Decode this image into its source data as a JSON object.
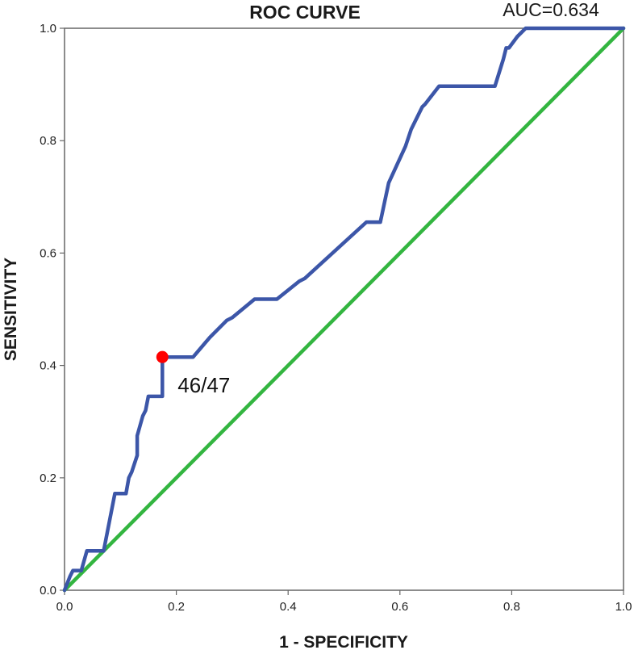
{
  "chart_data": {
    "type": "line",
    "title": "ROC CURVE",
    "auc_label": "AUC=0.634",
    "xlabel": "1 - SPECIFICITY",
    "ylabel": "SENSITIVITY",
    "xlim": [
      0.0,
      1.0
    ],
    "ylim": [
      0.0,
      1.0
    ],
    "x_ticks": [
      "0.0",
      "0.2",
      "0.4",
      "0.6",
      "0.8",
      "1.0"
    ],
    "y_ticks": [
      "0.0",
      "0.2",
      "0.4",
      "0.6",
      "0.8",
      "1.0"
    ],
    "grid": false,
    "series": [
      {
        "color": "#3c56a8",
        "x": [
          0.0,
          0.01,
          0.015,
          0.03,
          0.04,
          0.065,
          0.07,
          0.09,
          0.11,
          0.115,
          0.12,
          0.13,
          0.13,
          0.14,
          0.145,
          0.15,
          0.17,
          0.175,
          0.175,
          0.23,
          0.26,
          0.29,
          0.3,
          0.34,
          0.38,
          0.42,
          0.43,
          0.54,
          0.565,
          0.58,
          0.61,
          0.62,
          0.64,
          0.645,
          0.67,
          0.77,
          0.785,
          0.79,
          0.795,
          0.81,
          0.825,
          1.0
        ],
        "y": [
          0.0,
          0.025,
          0.035,
          0.035,
          0.07,
          0.07,
          0.07,
          0.172,
          0.172,
          0.2,
          0.21,
          0.24,
          0.275,
          0.31,
          0.32,
          0.345,
          0.345,
          0.345,
          0.415,
          0.415,
          0.45,
          0.48,
          0.485,
          0.518,
          0.518,
          0.55,
          0.555,
          0.655,
          0.655,
          0.725,
          0.79,
          0.82,
          0.86,
          0.865,
          0.897,
          0.897,
          0.945,
          0.965,
          0.965,
          0.985,
          1.0,
          1.0
        ]
      },
      {
        "color": "#33b540",
        "x": [
          0.0,
          1.0
        ],
        "y": [
          0.0,
          1.0
        ]
      }
    ],
    "highlight_point": {
      "x": 0.175,
      "y": 0.415,
      "color": "#ff0000",
      "label": "46/47"
    },
    "colors": {
      "frame": "#666666",
      "roc_line": "#3c56a8",
      "reference_line": "#33b540",
      "marker": "#ff0000"
    }
  }
}
